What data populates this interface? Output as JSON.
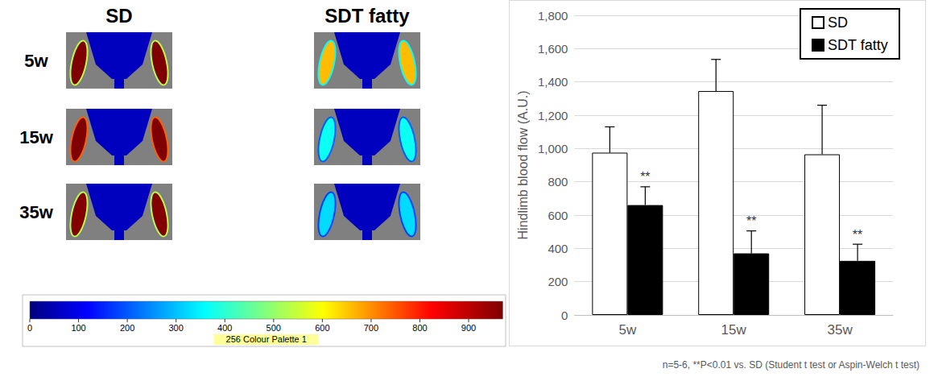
{
  "chart_data": {
    "type": "bar",
    "categories": [
      "5w",
      "15w",
      "35w"
    ],
    "y_label": "Hindlimb blood flow (A.U.)",
    "series": [
      {
        "name": "SD",
        "color": "#ffffff",
        "values": [
          975,
          1345,
          965
        ],
        "errors": [
          155,
          190,
          295
        ]
      },
      {
        "name": "SDT fatty",
        "color": "#000000",
        "values": [
          660,
          370,
          325
        ],
        "errors": [
          110,
          135,
          100
        ]
      }
    ],
    "ylim": [
      0,
      1800
    ],
    "yticks": [
      0,
      200,
      400,
      600,
      800,
      1000,
      1200,
      1400,
      1600,
      1800
    ],
    "grid": true,
    "legend": "top-right",
    "annotations": [
      {
        "series": "SDT fatty",
        "category": "5w",
        "text": "**"
      },
      {
        "series": "SDT fatty",
        "category": "15w",
        "text": "**"
      },
      {
        "series": "SDT fatty",
        "category": "35w",
        "text": "**"
      }
    ],
    "footnote": "n=5-6, **P<0.01 vs. SD (Student t test or Aspin-Welch t test)"
  },
  "image_panel": {
    "columns": [
      "SD",
      "SDT fatty"
    ],
    "rows": [
      "5w",
      "15w",
      "35w"
    ],
    "colorbar": {
      "range": [
        0,
        970
      ],
      "ticks": [
        0,
        100,
        200,
        300,
        400,
        500,
        600,
        700,
        800,
        900
      ],
      "label": "256 Colour Palette 1"
    }
  }
}
